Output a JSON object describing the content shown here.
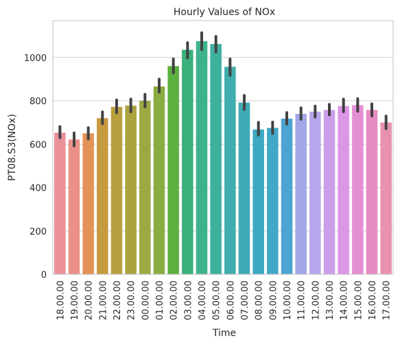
{
  "chart_data": {
    "type": "bar",
    "title": "Hourly Values of NOx",
    "xlabel": "Time",
    "ylabel": "PT08.S3(NOx)",
    "ylim": [
      0,
      1170
    ],
    "yticks": [
      0,
      200,
      400,
      600,
      800,
      1000
    ],
    "grid": true,
    "categories": [
      "18.00.00",
      "19.00.00",
      "20.00.00",
      "21.00.00",
      "22.00.00",
      "23.00.00",
      "00.00.00",
      "01.00.00",
      "02.00.00",
      "03.00.00",
      "04.00.00",
      "05.00.00",
      "06.00.00",
      "07.00.00",
      "08.00.00",
      "09.00.00",
      "10.00.00",
      "11.00.00",
      "12.00.00",
      "13.00.00",
      "14.00.00",
      "15.00.00",
      "16.00.00",
      "17.00.00"
    ],
    "values": [
      653,
      622,
      650,
      720,
      772,
      778,
      800,
      866,
      960,
      1035,
      1075,
      1062,
      957,
      792,
      668,
      675,
      718,
      740,
      750,
      758,
      776,
      780,
      758,
      700
    ],
    "ci_low": [
      630,
      592,
      624,
      694,
      745,
      750,
      772,
      840,
      928,
      998,
      1036,
      1025,
      918,
      760,
      642,
      650,
      693,
      715,
      725,
      735,
      750,
      752,
      730,
      672
    ],
    "ci_high": [
      681,
      652,
      676,
      749,
      804,
      808,
      830,
      900,
      993,
      1068,
      1114,
      1097,
      993,
      825,
      701,
      702,
      746,
      768,
      776,
      784,
      808,
      810,
      786,
      730
    ],
    "colors": [
      "#eb9198",
      "#eb918a",
      "#e49257",
      "#c69a3e",
      "#b9a03f",
      "#aba340",
      "#9ca841",
      "#8aac42",
      "#5cb03f",
      "#3ab07b",
      "#3db28c",
      "#3eb09e",
      "#3fadad",
      "#3faab5",
      "#3da9c1",
      "#42a7c9",
      "#4ca4d2",
      "#a2a7ea",
      "#b8a6ed",
      "#ca9eea",
      "#dd95e6",
      "#e48fd4",
      "#e78cc2",
      "#e892ae"
    ]
  }
}
